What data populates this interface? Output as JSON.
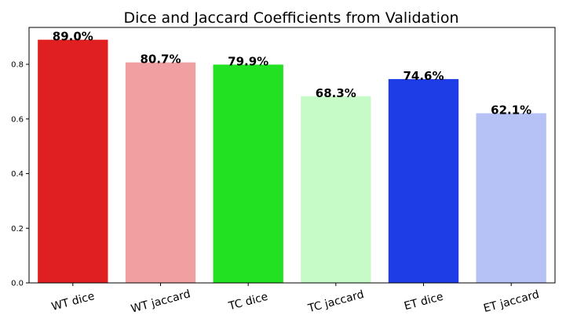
{
  "chart_data": {
    "type": "bar",
    "title": "Dice and Jaccard Coefficients from Validation",
    "xlabel": "",
    "ylabel": "",
    "categories": [
      "WT dice",
      "WT jaccard",
      "TC dice",
      "TC jaccard",
      "ET dice",
      "ET jaccard"
    ],
    "values": [
      0.89,
      0.807,
      0.799,
      0.683,
      0.746,
      0.621
    ],
    "data_labels": [
      "89.0%",
      "80.7%",
      "79.9%",
      "68.3%",
      "74.6%",
      "62.1%"
    ],
    "colors": [
      "#e02020",
      "#f0a0a0",
      "#22e022",
      "#c6fac6",
      "#1f3de6",
      "#b6c2f6"
    ],
    "yticks": [
      0.0,
      0.2,
      0.4,
      0.6,
      0.8
    ],
    "ytick_labels": [
      "0.0",
      "0.2",
      "0.4",
      "0.6",
      "0.8"
    ],
    "ylim": [
      0,
      0.935
    ],
    "grid": false,
    "legend": "none"
  }
}
